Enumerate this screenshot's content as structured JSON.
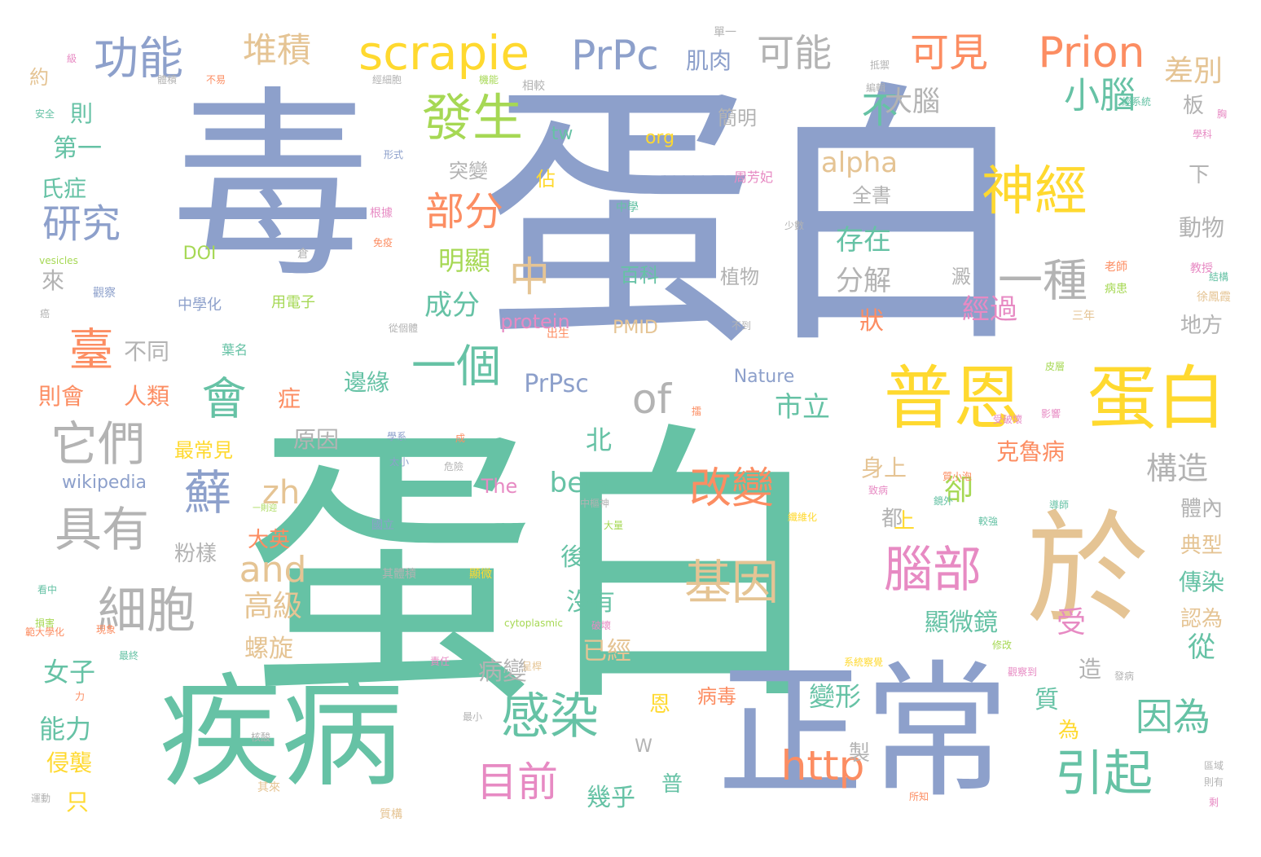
{
  "palette": {
    "blue": "#8da0cb",
    "green": "#66c2a5",
    "orange": "#fc8d62",
    "pink": "#e78ac3",
    "lime": "#a6d854",
    "yellow": "#ffd92f",
    "tan": "#e5c494",
    "gray": "#b3b3b3"
  },
  "words": [
    {
      "text": "毒"
    },
    {
      "text": "蛋白"
    },
    {
      "text": "蛋白"
    },
    {
      "text": "疾病"
    },
    {
      "text": "正常"
    },
    {
      "text": "於"
    },
    {
      "text": "普恩"
    },
    {
      "text": "蛋白"
    },
    {
      "text": "scrapie"
    },
    {
      "text": "PrPc"
    },
    {
      "text": "Prion"
    },
    {
      "text": "功能"
    },
    {
      "text": "發生"
    },
    {
      "text": "神經"
    },
    {
      "text": "基因"
    },
    {
      "text": "改變"
    },
    {
      "text": "細胞"
    },
    {
      "text": "具有"
    },
    {
      "text": "它們"
    },
    {
      "text": "感染"
    },
    {
      "text": "引起"
    },
    {
      "text": "腦部"
    },
    {
      "text": "部分"
    },
    {
      "text": "一種"
    },
    {
      "text": "一個"
    },
    {
      "text": "會"
    },
    {
      "text": "蘚"
    },
    {
      "text": "臺"
    },
    {
      "text": "研究"
    },
    {
      "text": "可見"
    },
    {
      "text": "可能"
    },
    {
      "text": "堆積"
    },
    {
      "text": "小腦"
    },
    {
      "text": "差別"
    },
    {
      "text": "不"
    },
    {
      "text": "中"
    },
    {
      "text": "of"
    },
    {
      "text": "and"
    },
    {
      "text": "zh"
    },
    {
      "text": "http"
    },
    {
      "text": "目前"
    },
    {
      "text": "因為"
    },
    {
      "text": "PrPsc"
    },
    {
      "text": "beta"
    },
    {
      "text": "alpha"
    },
    {
      "text": "構造"
    },
    {
      "text": "卻"
    },
    {
      "text": "從"
    },
    {
      "text": "受"
    },
    {
      "text": "高級"
    },
    {
      "text": "大腦"
    },
    {
      "text": "存在"
    },
    {
      "text": "分解"
    },
    {
      "text": "經過"
    },
    {
      "text": "成分"
    },
    {
      "text": "明顯"
    },
    {
      "text": "第一"
    },
    {
      "text": "氏症"
    },
    {
      "text": "則"
    },
    {
      "text": "約"
    },
    {
      "text": "來"
    },
    {
      "text": "不同"
    },
    {
      "text": "則會"
    },
    {
      "text": "人類"
    },
    {
      "text": "症"
    },
    {
      "text": "邊緣"
    },
    {
      "text": "市立"
    },
    {
      "text": "北"
    },
    {
      "text": "原因"
    },
    {
      "text": "身上"
    },
    {
      "text": "克魯病"
    },
    {
      "text": "體內"
    },
    {
      "text": "典型"
    },
    {
      "text": "傳染"
    },
    {
      "text": "認為"
    },
    {
      "text": "顯微鏡"
    },
    {
      "text": "沒有"
    },
    {
      "text": "後"
    },
    {
      "text": "已經"
    },
    {
      "text": "病變"
    },
    {
      "text": "變形"
    },
    {
      "text": "質"
    },
    {
      "text": "造"
    },
    {
      "text": "能力"
    },
    {
      "text": "女子"
    },
    {
      "text": "侵襲"
    },
    {
      "text": "只"
    },
    {
      "text": "螺旋"
    },
    {
      "text": "最常見"
    },
    {
      "text": "大英"
    },
    {
      "text": "粉樣"
    },
    {
      "text": "病毒"
    },
    {
      "text": "幾乎"
    },
    {
      "text": "恩"
    },
    {
      "text": "為"
    },
    {
      "text": "普"
    },
    {
      "text": "製"
    },
    {
      "text": "都"
    },
    {
      "text": "上"
    },
    {
      "text": "狀"
    },
    {
      "text": "澱"
    },
    {
      "text": "板"
    },
    {
      "text": "下"
    },
    {
      "text": "動物"
    },
    {
      "text": "地方"
    },
    {
      "text": "全書"
    },
    {
      "text": "突變"
    },
    {
      "text": "佔"
    },
    {
      "text": "簡明"
    },
    {
      "text": "植物"
    },
    {
      "text": "百科"
    },
    {
      "text": "肌肉"
    },
    {
      "text": "tw"
    },
    {
      "text": "org"
    },
    {
      "text": "DOI"
    },
    {
      "text": "protein"
    },
    {
      "text": "PMID"
    },
    {
      "text": "Nature"
    },
    {
      "text": "wikipedia"
    },
    {
      "text": "The"
    },
    {
      "text": "W"
    },
    {
      "text": "中學化"
    },
    {
      "text": "用電子"
    },
    {
      "text": "周芳妃"
    },
    {
      "text": "徐鳳霞"
    },
    {
      "text": "教授"
    },
    {
      "text": "老師"
    },
    {
      "text": "病患"
    },
    {
      "text": "三年"
    },
    {
      "text": "學科"
    },
    {
      "text": "結構"
    },
    {
      "text": "觀察"
    },
    {
      "text": "vesicles"
    },
    {
      "text": "cytoplasmic"
    },
    {
      "text": "安全"
    },
    {
      "text": "體積"
    },
    {
      "text": "不易"
    },
    {
      "text": "經細胞"
    },
    {
      "text": "機能"
    },
    {
      "text": "相較"
    },
    {
      "text": "抵禦"
    },
    {
      "text": "編輯"
    },
    {
      "text": "單一"
    },
    {
      "text": "經系統"
    },
    {
      "text": "胸"
    },
    {
      "text": "級"
    },
    {
      "text": "形式"
    },
    {
      "text": "中學"
    },
    {
      "text": "根據"
    },
    {
      "text": "免疫"
    },
    {
      "text": "倉"
    },
    {
      "text": "從個體"
    },
    {
      "text": "出生"
    },
    {
      "text": "葉名"
    },
    {
      "text": "少數"
    },
    {
      "text": "不到"
    },
    {
      "text": "皮層"
    },
    {
      "text": "學系"
    },
    {
      "text": "成"
    },
    {
      "text": "太小"
    },
    {
      "text": "危險"
    },
    {
      "text": "一則迎"
    },
    {
      "text": "國立"
    },
    {
      "text": "中樞神"
    },
    {
      "text": "鏡外"
    },
    {
      "text": "較強"
    },
    {
      "text": "大量"
    },
    {
      "text": "質小泡"
    },
    {
      "text": "影響"
    },
    {
      "text": "受破壞"
    },
    {
      "text": "致病"
    },
    {
      "text": "導師"
    },
    {
      "text": "纖維化"
    },
    {
      "text": "現象"
    },
    {
      "text": "其體積"
    },
    {
      "text": "顯微"
    },
    {
      "text": "看中"
    },
    {
      "text": "破壞"
    },
    {
      "text": "損害"
    },
    {
      "text": "範大學化"
    },
    {
      "text": "最終"
    },
    {
      "text": "責任"
    },
    {
      "text": "呈桿"
    },
    {
      "text": "修改"
    },
    {
      "text": "觀察到"
    },
    {
      "text": "發病"
    },
    {
      "text": "系統察覺"
    },
    {
      "text": "力"
    },
    {
      "text": "最小"
    },
    {
      "text": "核酸"
    },
    {
      "text": "其來"
    },
    {
      "text": "質構"
    },
    {
      "text": "運動"
    },
    {
      "text": "所知"
    },
    {
      "text": "區域"
    },
    {
      "text": "則有"
    },
    {
      "text": "剩"
    },
    {
      "text": "癌"
    },
    {
      "text": "擂"
    }
  ]
}
